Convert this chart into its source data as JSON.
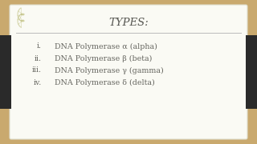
{
  "title": "TYPES:",
  "items": [
    {
      "num": "i.",
      "text": "DNA Polymerase α (alpha)"
    },
    {
      "num": "ii.",
      "text": "DNA Polymerase β (beta)"
    },
    {
      "num": "iii.",
      "text": "DNA Polymerase γ (gamma)"
    },
    {
      "num": "iv.",
      "text": "DNA Polymerase δ (delta)"
    }
  ],
  "bg_outer": "#c9a96e",
  "bg_slide": "#fafaf4",
  "title_color": "#555550",
  "text_color": "#666660",
  "line_color": "#bbbbbb",
  "dark_bar_color": "#2a2a2a",
  "border_color": "#ddddcc",
  "title_fontsize": 9.5,
  "item_fontsize": 6.8,
  "num_fontsize": 6.8
}
